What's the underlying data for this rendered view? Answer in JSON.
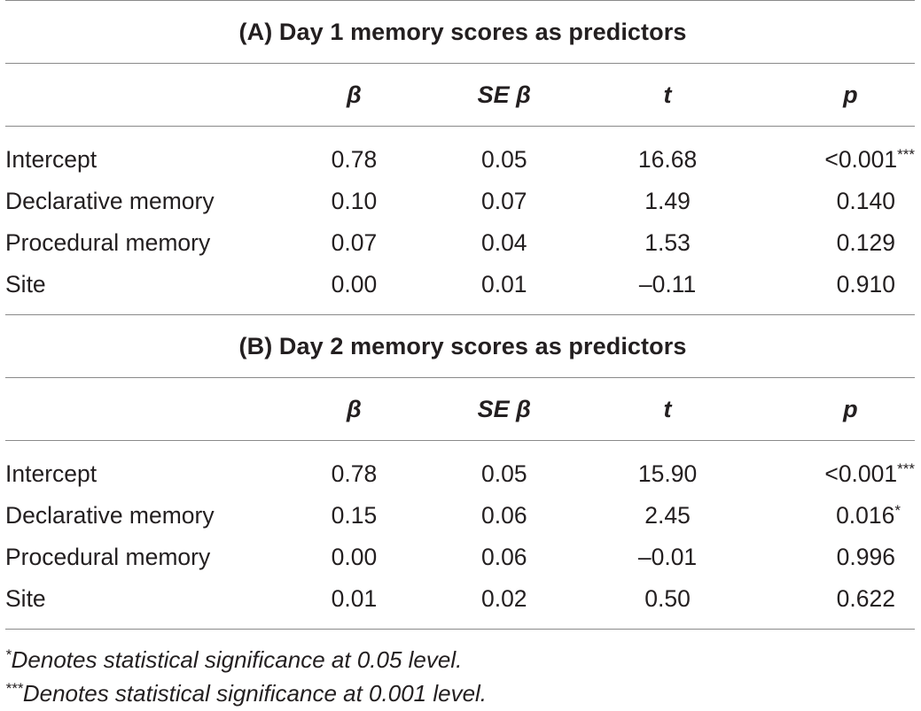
{
  "columns": [
    "β",
    "SE β",
    "t",
    "p"
  ],
  "sections": [
    {
      "title": "(A) Day 1 memory scores as predictors",
      "rows": [
        {
          "label": "Intercept",
          "beta": "0.78",
          "se": "0.05",
          "t": "16.68",
          "p": "<0.001",
          "sig": "***"
        },
        {
          "label": "Declarative memory",
          "beta": "0.10",
          "se": "0.07",
          "t": "1.49",
          "p": "0.140",
          "sig": ""
        },
        {
          "label": "Procedural memory",
          "beta": "0.07",
          "se": "0.04",
          "t": "1.53",
          "p": "0.129",
          "sig": ""
        },
        {
          "label": "Site",
          "beta": "0.00",
          "se": "0.01",
          "t": "–0.11",
          "p": "0.910",
          "sig": ""
        }
      ]
    },
    {
      "title": "(B) Day 2 memory scores as predictors",
      "rows": [
        {
          "label": "Intercept",
          "beta": "0.78",
          "se": "0.05",
          "t": "15.90",
          "p": "<0.001",
          "sig": "***"
        },
        {
          "label": "Declarative memory",
          "beta": "0.15",
          "se": "0.06",
          "t": "2.45",
          "p": "0.016",
          "sig": "*"
        },
        {
          "label": "Procedural memory",
          "beta": "0.00",
          "se": "0.06",
          "t": "–0.01",
          "p": "0.996",
          "sig": ""
        },
        {
          "label": "Site",
          "beta": "0.01",
          "se": "0.02",
          "t": "0.50",
          "p": "0.622",
          "sig": ""
        }
      ]
    }
  ],
  "footnotes": [
    {
      "marker": "*",
      "text": "Denotes statistical significance at 0.05 level."
    },
    {
      "marker": "***",
      "text": "Denotes statistical significance at 0.001 level."
    }
  ]
}
